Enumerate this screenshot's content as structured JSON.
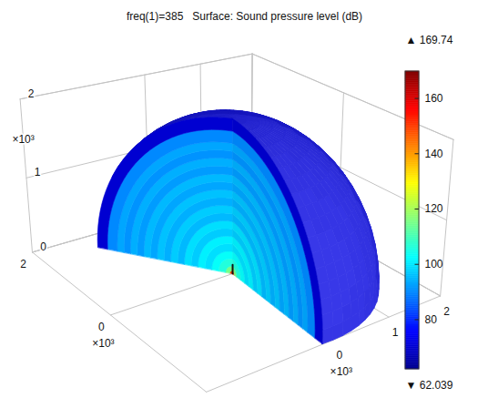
{
  "chart_data": {
    "type": "surface",
    "title": "freq(1)=385   Surface: Sound pressure level (dB)",
    "xlim": [
      -2,
      2
    ],
    "ylim": [
      -2,
      2
    ],
    "zlim": [
      0,
      2
    ],
    "xticks": [
      0,
      1,
      2
    ],
    "yticks": [
      0,
      2
    ],
    "zticks": [
      0,
      1,
      2
    ],
    "xlabel": "×10³",
    "ylabel": "×10³",
    "zlabel": "×10³",
    "grid": true,
    "field": {
      "r": [
        0,
        0.04,
        0.1,
        0.2,
        0.3,
        0.4,
        0.5,
        0.6,
        0.7,
        0.8,
        0.9,
        1.0,
        1.1,
        1.2,
        1.3,
        1.4,
        1.5,
        1.6,
        1.7,
        1.85,
        2.0
      ],
      "values": [
        150,
        115,
        106,
        103,
        99,
        101,
        97,
        99,
        95,
        97,
        94,
        96,
        93,
        95,
        92,
        94,
        91,
        93,
        90,
        70
      ]
    },
    "surface_value": 72,
    "colorbar": {
      "range": [
        {
          "value": 62.039,
          "label": "▼ 62.039"
        },
        {
          "value": 169.74,
          "label": "▲ 169.74"
        }
      ],
      "ticks": [
        80,
        100,
        120,
        140,
        160
      ]
    }
  }
}
